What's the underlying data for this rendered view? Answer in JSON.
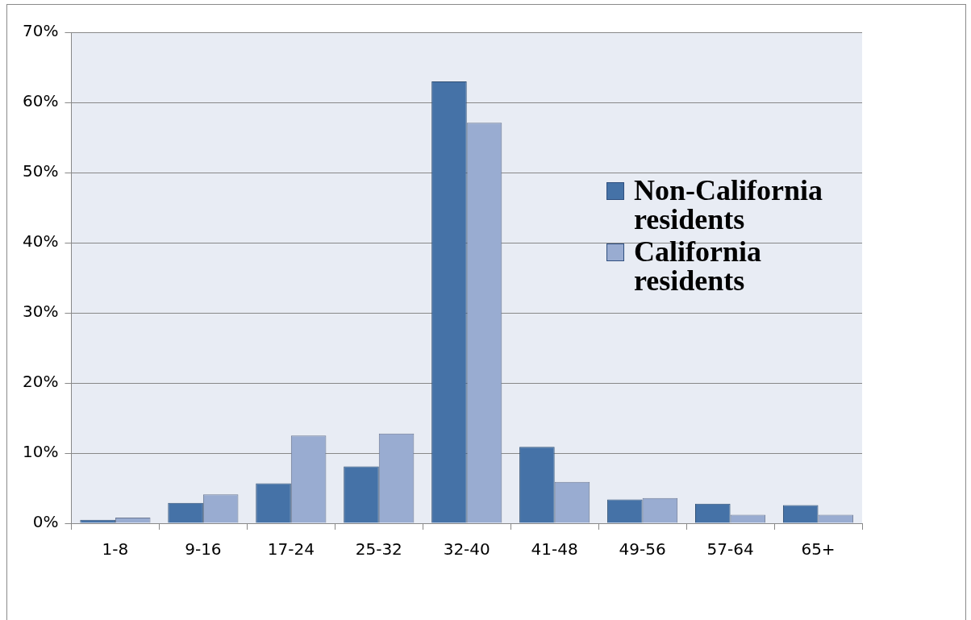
{
  "chart_data": {
    "type": "bar",
    "categories": [
      "1-8",
      "9-16",
      "17-24",
      "25-32",
      "32-40",
      "41-48",
      "49-56",
      "57-64",
      "65+"
    ],
    "series": [
      {
        "name": "Non-California residents",
        "color": "#4572a7",
        "values": [
          0.5,
          2.9,
          5.7,
          8.1,
          63.0,
          10.9,
          3.4,
          2.8,
          2.6
        ]
      },
      {
        "name": "California residents",
        "color": "#99acd1",
        "values": [
          0.8,
          4.1,
          12.5,
          12.8,
          57.1,
          5.9,
          3.6,
          1.2,
          1.2
        ]
      }
    ],
    "ylim": [
      0,
      70
    ],
    "yticks": [
      {
        "value": 0,
        "label": "0%"
      },
      {
        "value": 10,
        "label": "10%"
      },
      {
        "value": 20,
        "label": "20%"
      },
      {
        "value": 30,
        "label": "30%"
      },
      {
        "value": 40,
        "label": "40%"
      },
      {
        "value": 50,
        "label": "50%"
      },
      {
        "value": 60,
        "label": "60%"
      },
      {
        "value": 70,
        "label": "70%"
      }
    ],
    "grid": "y",
    "legend": "right"
  }
}
